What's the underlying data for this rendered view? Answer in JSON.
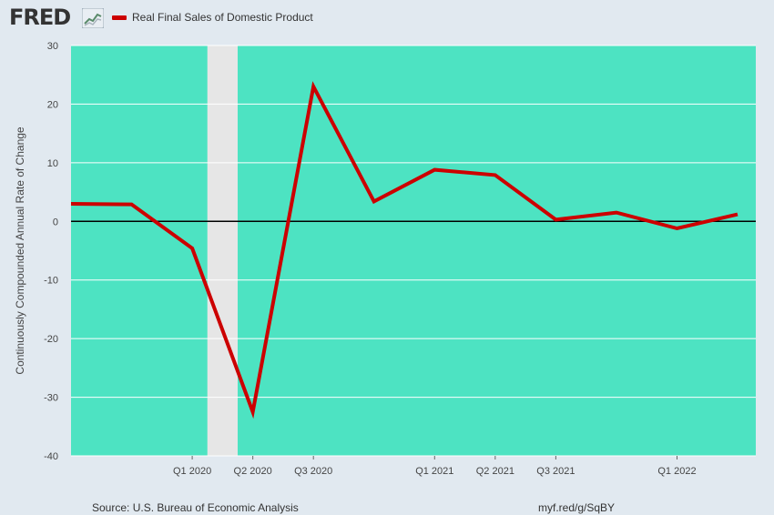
{
  "header": {
    "logo_text": "FRED",
    "logo_icon": "trend-line-icon",
    "legend_label": "Real Final Sales of Domestic Product",
    "legend_color": "#cc0000"
  },
  "footer": {
    "source": "Source: U.S. Bureau of Economic Analysis",
    "url": "myf.red/g/SqBY"
  },
  "colors": {
    "plot_background": "#4de3c2",
    "page_background": "#e1e9f0",
    "recession_shade": "#e6e6e6",
    "series_line": "#cc0000",
    "zero_line": "#000000"
  },
  "chart_data": {
    "type": "line",
    "title": "",
    "xlabel": "",
    "ylabel": "Continuously Compounded Annual Rate of Change",
    "ylim": [
      -40,
      30
    ],
    "yticks": [
      30,
      20,
      10,
      0,
      -10,
      -20,
      -30,
      -40
    ],
    "x_tick_labels": [
      "Q1 2020",
      "Q2 2020",
      "Q3 2020",
      "Q1 2021",
      "Q2 2021",
      "Q3 2021",
      "Q1 2022"
    ],
    "grid": true,
    "legend_position": "top-left",
    "recession_shading": [
      "Q1 2020",
      "Q2 2020"
    ],
    "series": [
      {
        "name": "Real Final Sales of Domestic Product",
        "x": [
          "2019-Q3",
          "2019-Q4",
          "2020-Q1",
          "2020-Q2",
          "2020-Q3",
          "2020-Q4",
          "2021-Q1",
          "2021-Q2",
          "2021-Q3",
          "2021-Q4",
          "2022-Q1",
          "2022-Q2"
        ],
        "values": [
          3.0,
          2.9,
          -4.6,
          -32.5,
          23.0,
          3.4,
          8.8,
          7.9,
          0.3,
          1.5,
          -1.2,
          1.2
        ]
      }
    ]
  }
}
